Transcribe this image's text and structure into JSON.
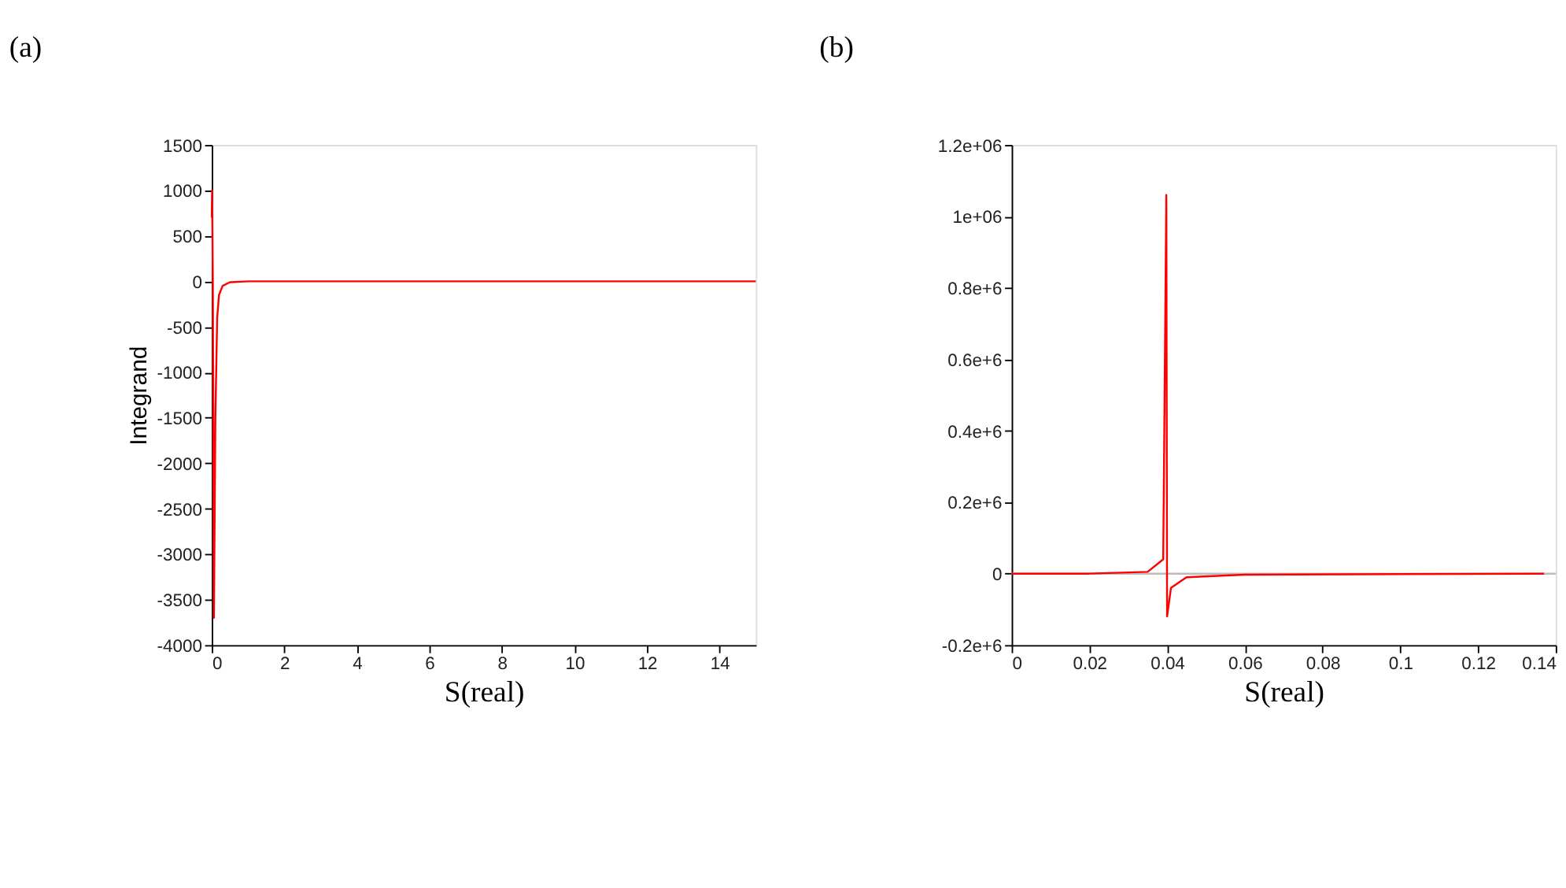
{
  "chart_data": [
    {
      "type": "line",
      "title": "(a)",
      "xlabel": "S(real)",
      "ylabel": "Integrand",
      "xlim": [
        0,
        15
      ],
      "xticks": [
        0,
        2,
        4,
        6,
        8,
        10,
        12,
        14
      ],
      "ylim": [
        -4000,
        1500
      ],
      "yticks": [
        -4000,
        -3500,
        -3000,
        -2500,
        -2000,
        -1500,
        -1000,
        -500,
        0,
        500,
        1000,
        1500
      ],
      "grid": false,
      "series": [
        {
          "color": "#ff0000",
          "x": [
            0,
            0.01,
            0.03,
            0.06,
            0.1,
            0.15,
            0.2,
            0.3,
            0.5,
            1,
            15
          ],
          "values": [
            700,
            1000,
            0,
            -3700,
            -1500,
            -400,
            -150,
            -50,
            -10,
            0,
            0
          ]
        }
      ]
    },
    {
      "type": "line",
      "title": "(b)",
      "xlabel": "S(real)",
      "xlim": [
        0,
        0.14
      ],
      "xticks": [
        0,
        0.02,
        0.04,
        0.06,
        0.08,
        0.1,
        0.12,
        0.14
      ],
      "ylim": [
        -200000,
        1200000
      ],
      "yticks": [
        {
          "value": -200000,
          "label": "-0.2e+6"
        },
        {
          "value": 0,
          "label": "0"
        },
        {
          "value": 200000,
          "label": "0.2e+6"
        },
        {
          "value": 400000,
          "label": "0.4e+6"
        },
        {
          "value": 600000,
          "label": "0.6e+6"
        },
        {
          "value": 800000,
          "label": "0.8e+6"
        },
        {
          "value": 1000000,
          "label": "1e+06"
        },
        {
          "value": 1200000,
          "label": "1.2e+06"
        }
      ],
      "grid": false,
      "series": [
        {
          "color": "#bbbbbb",
          "x": [
            0,
            0.14
          ],
          "values": [
            0,
            0
          ]
        },
        {
          "color": "#ff0000",
          "x": [
            0,
            0.02,
            0.035,
            0.039,
            0.0398,
            0.04,
            0.041,
            0.045,
            0.06,
            0.137
          ],
          "values": [
            0,
            0,
            5000,
            40000,
            1060000,
            -120000,
            -40000,
            -10000,
            -3000,
            0
          ]
        }
      ]
    }
  ]
}
